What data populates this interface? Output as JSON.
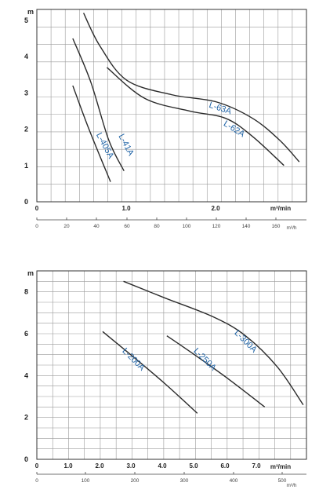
{
  "chart_data": [
    {
      "type": "line",
      "ylabel": "m",
      "x_unit": "m³/min",
      "secondary_x_unit": "m³/h",
      "xlim": [
        0,
        3.0
      ],
      "ylim": [
        0,
        5.3
      ],
      "y_ticks": [
        "0",
        "1",
        "2",
        "3",
        "4",
        "5"
      ],
      "x_ticks": [
        "0",
        "1.0",
        "2.0"
      ],
      "secondary_x_ticks": [
        "0",
        "20",
        "40",
        "60",
        "80",
        "100",
        "120",
        "140",
        "160"
      ],
      "grid": true,
      "series": [
        {
          "name": "L-405A",
          "points": [
            [
              0.4,
              3.2
            ],
            [
              0.58,
              2.0
            ],
            [
              0.82,
              0.55
            ]
          ]
        },
        {
          "name": "L-41A",
          "points": [
            [
              0.4,
              4.5
            ],
            [
              0.6,
              3.3
            ],
            [
              0.8,
              1.7
            ],
            [
              0.97,
              0.85
            ]
          ]
        },
        {
          "name": "L-62A",
          "points": [
            [
              0.78,
              3.7
            ],
            [
              1.2,
              2.85
            ],
            [
              1.7,
              2.5
            ],
            [
              2.1,
              2.3
            ],
            [
              2.4,
              1.8
            ],
            [
              2.75,
              1.0
            ]
          ]
        },
        {
          "name": "L-63A",
          "points": [
            [
              0.52,
              5.2
            ],
            [
              0.7,
              4.3
            ],
            [
              1.0,
              3.35
            ],
            [
              1.5,
              2.95
            ],
            [
              2.0,
              2.75
            ],
            [
              2.4,
              2.3
            ],
            [
              2.7,
              1.7
            ],
            [
              2.92,
              1.1
            ]
          ]
        }
      ]
    },
    {
      "type": "line",
      "ylabel": "m",
      "x_unit": "m³/min",
      "secondary_x_unit": "m³/h",
      "xlim": [
        0,
        8.4
      ],
      "ylim": [
        0,
        9
      ],
      "y_ticks": [
        "0",
        "2",
        "4",
        "6",
        "8"
      ],
      "x_ticks": [
        "0",
        "1.0",
        "2.0",
        "3.0",
        "4.0",
        "5.0",
        "6.0",
        "7.0"
      ],
      "secondary_x_ticks": [
        "0",
        "100",
        "200",
        "300",
        "400",
        "500"
      ],
      "grid": true,
      "series": [
        {
          "name": "L-200A",
          "points": [
            [
              2.05,
              6.1
            ],
            [
              3.0,
              4.9
            ],
            [
              4.0,
              3.6
            ],
            [
              5.0,
              2.2
            ]
          ]
        },
        {
          "name": "L-250A",
          "points": [
            [
              4.05,
              5.9
            ],
            [
              5.0,
              4.9
            ],
            [
              6.0,
              3.8
            ],
            [
              7.1,
              2.5
            ]
          ]
        },
        {
          "name": "L-300A",
          "points": [
            [
              2.7,
              8.5
            ],
            [
              4.0,
              7.7
            ],
            [
              5.5,
              6.8
            ],
            [
              6.5,
              5.9
            ],
            [
              7.5,
              4.4
            ],
            [
              8.3,
              2.6
            ]
          ]
        }
      ]
    }
  ]
}
